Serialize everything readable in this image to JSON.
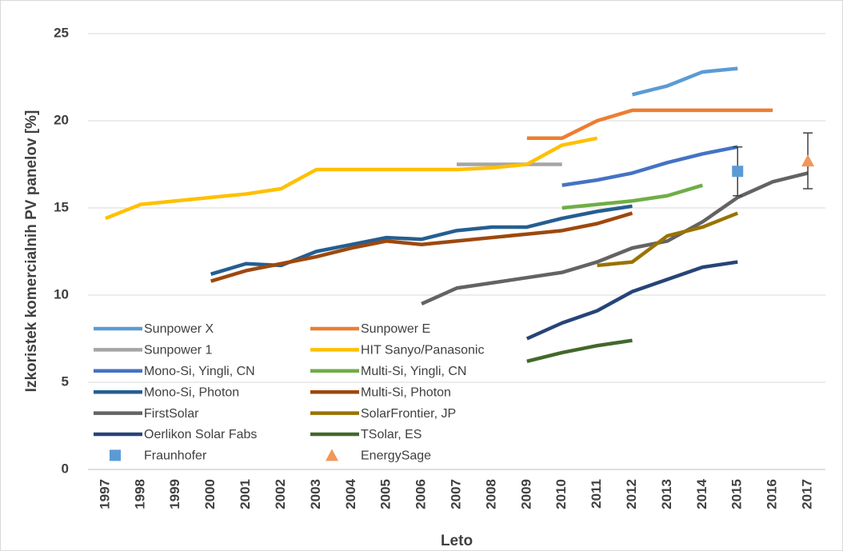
{
  "chart_data": {
    "type": "line",
    "y_label": "Izkoristek komercialnih  PV panelov [%]",
    "x_label": "Leto",
    "categories": [
      "1997",
      "1998",
      "1999",
      "2000",
      "2001",
      "2002",
      "2003",
      "2004",
      "2005",
      "2006",
      "2007",
      "2008",
      "2009",
      "2010",
      "2011",
      "2012",
      "2013",
      "2014",
      "2015",
      "2016",
      "2017"
    ],
    "ylim": [
      0,
      25
    ],
    "yticks": [
      0,
      5,
      10,
      15,
      20,
      25
    ],
    "grid": true,
    "series": [
      {
        "name": "Sunpower X",
        "color": "#5b9bd5",
        "values": [
          null,
          null,
          null,
          null,
          null,
          null,
          null,
          null,
          null,
          null,
          null,
          null,
          null,
          null,
          null,
          21.5,
          22.0,
          22.8,
          23.0,
          null,
          null
        ]
      },
      {
        "name": "Sunpower E",
        "color": "#ed7d31",
        "values": [
          null,
          null,
          null,
          null,
          null,
          null,
          null,
          null,
          null,
          null,
          null,
          null,
          19.0,
          19.0,
          20.0,
          20.6,
          20.6,
          20.6,
          20.6,
          20.6,
          null
        ]
      },
      {
        "name": "Sunpower 1",
        "color": "#a5a5a5",
        "values": [
          null,
          null,
          null,
          null,
          null,
          null,
          null,
          null,
          null,
          null,
          17.5,
          17.5,
          17.5,
          17.5,
          null,
          null,
          null,
          null,
          null,
          null,
          null
        ]
      },
      {
        "name": "HIT Sanyo/Panasonic",
        "color": "#ffc000",
        "values": [
          14.4,
          15.2,
          15.4,
          15.6,
          15.8,
          16.1,
          17.2,
          17.2,
          17.2,
          17.2,
          17.2,
          17.3,
          17.5,
          18.6,
          19.0,
          null,
          null,
          null,
          null,
          null,
          null
        ]
      },
      {
        "name": "Mono-Si, Yingli, CN",
        "color": "#4472c4",
        "values": [
          null,
          null,
          null,
          null,
          null,
          null,
          null,
          null,
          null,
          null,
          null,
          null,
          null,
          16.3,
          16.6,
          17.0,
          17.6,
          18.1,
          18.5,
          null,
          null
        ]
      },
      {
        "name": "Multi-Si, Yingli, CN",
        "color": "#70ad47",
        "values": [
          null,
          null,
          null,
          null,
          null,
          null,
          null,
          null,
          null,
          null,
          null,
          null,
          null,
          15.0,
          15.2,
          15.4,
          15.7,
          16.3,
          null,
          null,
          null
        ]
      },
      {
        "name": "Mono-Si, Photon",
        "color": "#255e91",
        "values": [
          null,
          null,
          null,
          11.2,
          11.8,
          11.7,
          12.5,
          12.9,
          13.3,
          13.2,
          13.7,
          13.9,
          13.9,
          14.4,
          14.8,
          15.1,
          null,
          null,
          null,
          null,
          null
        ]
      },
      {
        "name": "Multi-Si, Photon",
        "color": "#9e480e",
        "values": [
          null,
          null,
          null,
          10.8,
          11.4,
          11.8,
          12.2,
          12.7,
          13.1,
          12.9,
          13.1,
          13.3,
          13.5,
          13.7,
          14.1,
          14.7,
          null,
          null,
          null,
          null,
          null
        ]
      },
      {
        "name": "FirstSolar",
        "color": "#636363",
        "values": [
          null,
          null,
          null,
          null,
          null,
          null,
          null,
          null,
          null,
          9.5,
          10.4,
          10.7,
          11.0,
          11.3,
          11.9,
          12.7,
          13.1,
          14.2,
          15.6,
          16.5,
          17.0
        ]
      },
      {
        "name": "SolarFrontier, JP",
        "color": "#997300",
        "values": [
          null,
          null,
          null,
          null,
          null,
          null,
          null,
          null,
          null,
          null,
          null,
          null,
          null,
          null,
          11.7,
          11.9,
          13.4,
          13.9,
          14.7,
          null,
          null
        ]
      },
      {
        "name": "Oerlikon Solar Fabs",
        "color": "#264478",
        "values": [
          null,
          null,
          null,
          null,
          null,
          null,
          null,
          null,
          null,
          null,
          null,
          null,
          7.5,
          8.4,
          9.1,
          10.2,
          10.9,
          11.6,
          11.9,
          null,
          null
        ]
      },
      {
        "name": "TSolar, ES",
        "color": "#43682b",
        "values": [
          null,
          null,
          null,
          null,
          null,
          null,
          null,
          null,
          null,
          null,
          null,
          null,
          6.2,
          6.7,
          7.1,
          7.4,
          null,
          null,
          null,
          null,
          null
        ]
      },
      {
        "name": "Fraunhofer",
        "color": "#5b9bd5",
        "marker": "square",
        "values": [
          null,
          null,
          null,
          null,
          null,
          null,
          null,
          null,
          null,
          null,
          null,
          null,
          null,
          null,
          null,
          null,
          null,
          null,
          17.1,
          null,
          null
        ],
        "errors": [
          null,
          null,
          null,
          null,
          null,
          null,
          null,
          null,
          null,
          null,
          null,
          null,
          null,
          null,
          null,
          null,
          null,
          null,
          1.4,
          null,
          null
        ]
      },
      {
        "name": "EnergySage",
        "color": "#f1975a",
        "marker": "triangle",
        "values": [
          null,
          null,
          null,
          null,
          null,
          null,
          null,
          null,
          null,
          null,
          null,
          null,
          null,
          null,
          null,
          null,
          null,
          null,
          null,
          null,
          17.7
        ],
        "errors": [
          null,
          null,
          null,
          null,
          null,
          null,
          null,
          null,
          null,
          null,
          null,
          null,
          null,
          null,
          null,
          null,
          null,
          null,
          null,
          null,
          1.6
        ]
      }
    ]
  }
}
